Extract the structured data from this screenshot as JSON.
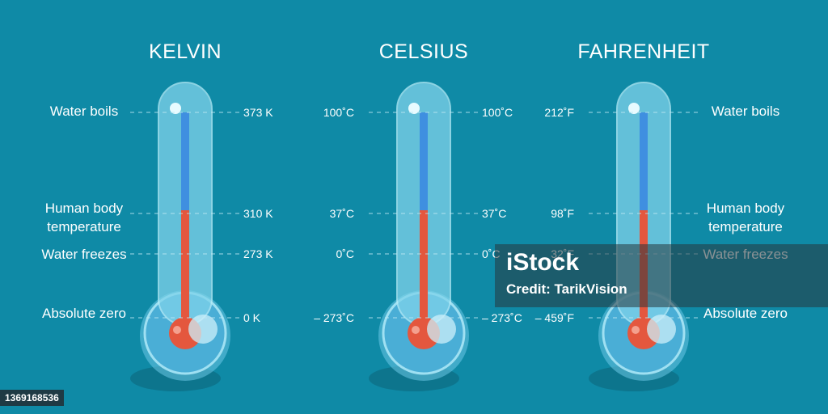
{
  "scales": [
    {
      "title": "KELVIN",
      "left_labels": [
        "Water boils",
        "Human body temperature",
        "Water freezes",
        "Absolute zero"
      ],
      "left_values": [],
      "right_values": [
        "373 K",
        "310 K",
        "273 K",
        "0 K"
      ],
      "right_labels": []
    },
    {
      "title": "CELSIUS",
      "left_labels": [],
      "left_values": [
        "100˚C",
        "37˚C",
        "0˚C",
        "– 273˚C"
      ],
      "right_values": [
        "100˚C",
        "37˚C",
        "0˚C",
        "– 273˚C"
      ],
      "right_labels": []
    },
    {
      "title": "FAHRENHEIT",
      "left_labels": [],
      "left_values": [
        "212˚F",
        "98˚F",
        "32˚F",
        "– 459˚F"
      ],
      "right_values": [],
      "right_labels": [
        "Water boils",
        "Human body temperature",
        "Water freezes",
        "Absolute zero"
      ]
    }
  ],
  "colors": {
    "background": "#0f8aa6",
    "tube_glass": "#7fd3ea",
    "column_blue": "#3f8fe0",
    "column_red": "#e4573e",
    "bulb_fill": "#4aaed6",
    "dash": "#bfe9f4"
  },
  "watermark": {
    "brand": "iStock",
    "credit": "Credit: TarikVision",
    "image_id": "1369168536"
  }
}
